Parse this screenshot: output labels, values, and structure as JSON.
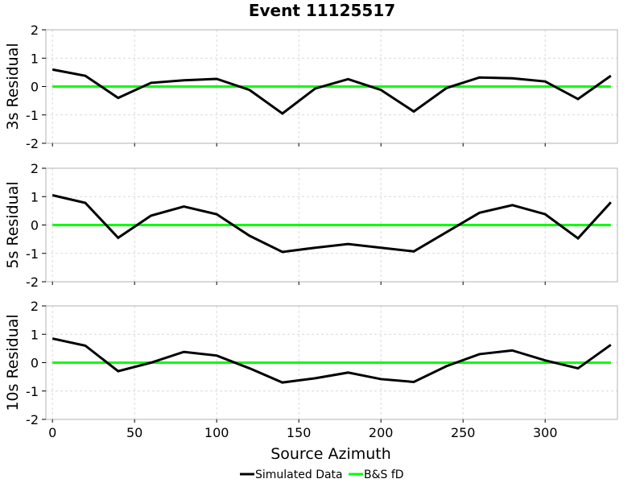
{
  "chart_data": {
    "type": "line",
    "title": "Event 11125517",
    "xlabel": "Source Azimuth",
    "xlim": [
      -4,
      344
    ],
    "xticks": [
      0,
      50,
      100,
      150,
      200,
      250,
      300
    ],
    "ylim": [
      -2,
      2
    ],
    "yticks": [
      -2,
      -1,
      0,
      1,
      2
    ],
    "grid": true,
    "legend_position": "bottom-center",
    "legend": [
      "Simulated Data",
      "B&S fD"
    ],
    "colors": {
      "simulated": "#000000",
      "model": "#00ff00"
    },
    "x": [
      0,
      20,
      40,
      60,
      80,
      100,
      120,
      140,
      160,
      180,
      200,
      220,
      240,
      260,
      280,
      300,
      320,
      340
    ],
    "panels": [
      {
        "ylabel": "3s Residual",
        "series": [
          {
            "name": "Simulated Data",
            "values": [
              0.6,
              0.38,
              -0.4,
              0.13,
              0.22,
              0.27,
              -0.12,
              -0.95,
              -0.07,
              0.26,
              -0.12,
              -0.88,
              -0.05,
              0.32,
              0.29,
              0.18,
              -0.44,
              0.38
            ]
          },
          {
            "name": "B&S fD",
            "values": [
              0,
              0,
              0,
              0,
              0,
              0,
              0,
              0,
              0,
              0,
              0,
              0,
              0,
              0,
              0,
              0,
              0,
              0
            ]
          }
        ]
      },
      {
        "ylabel": "5s Residual",
        "series": [
          {
            "name": "Simulated Data",
            "values": [
              1.05,
              0.78,
              -0.45,
              0.33,
              0.65,
              0.38,
              -0.38,
              -0.95,
              -0.8,
              -0.67,
              -0.8,
              -0.93,
              -0.25,
              0.43,
              0.7,
              0.38,
              -0.47,
              0.8
            ]
          },
          {
            "name": "B&S fD",
            "values": [
              0,
              0,
              0,
              0,
              0,
              0,
              0,
              0,
              0,
              0,
              0,
              0,
              0,
              0,
              0,
              0,
              0,
              0
            ]
          }
        ]
      },
      {
        "ylabel": "10s Residual",
        "series": [
          {
            "name": "Simulated Data",
            "values": [
              0.85,
              0.6,
              -0.3,
              0.0,
              0.38,
              0.25,
              -0.2,
              -0.7,
              -0.55,
              -0.35,
              -0.58,
              -0.68,
              -0.12,
              0.3,
              0.43,
              0.08,
              -0.2,
              0.63
            ]
          },
          {
            "name": "B&S fD",
            "values": [
              0,
              0,
              0,
              0,
              0,
              0,
              0,
              0,
              0,
              0,
              0,
              0,
              0,
              0,
              0,
              0,
              0,
              0
            ]
          }
        ]
      }
    ]
  }
}
